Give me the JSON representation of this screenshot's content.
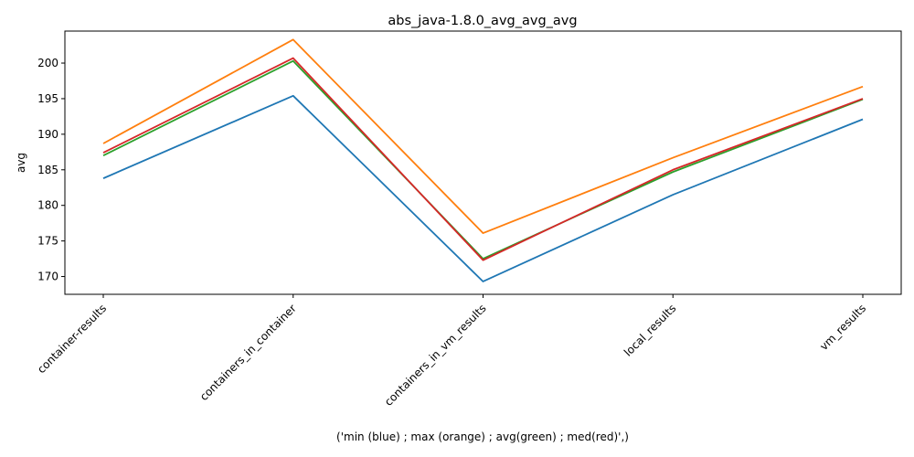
{
  "chart_data": {
    "type": "line",
    "title": "abs_java-1.8.0_avg_avg_avg",
    "xlabel": "('min (blue) ; max (orange) ; avg(green) ; med(red)',)",
    "ylabel": "avg",
    "categories": [
      "container-results",
      "containers_in_container",
      "containers_in_vm_results",
      "local_results",
      "vm_results"
    ],
    "ylim": [
      167.5,
      204.5
    ],
    "yticks": [
      170,
      175,
      180,
      185,
      190,
      195,
      200
    ],
    "grid": false,
    "series": [
      {
        "color": "#1f77b4",
        "values": [
          183.8,
          195.4,
          169.3,
          181.5,
          192.1
        ]
      },
      {
        "color": "#ff7f0e",
        "values": [
          188.7,
          203.3,
          176.1,
          186.7,
          196.7
        ]
      },
      {
        "color": "#2ca02c",
        "values": [
          187.0,
          200.3,
          172.5,
          184.7,
          194.9
        ]
      },
      {
        "color": "#d62728",
        "values": [
          187.4,
          200.7,
          172.3,
          185.0,
          195.0
        ]
      }
    ]
  }
}
